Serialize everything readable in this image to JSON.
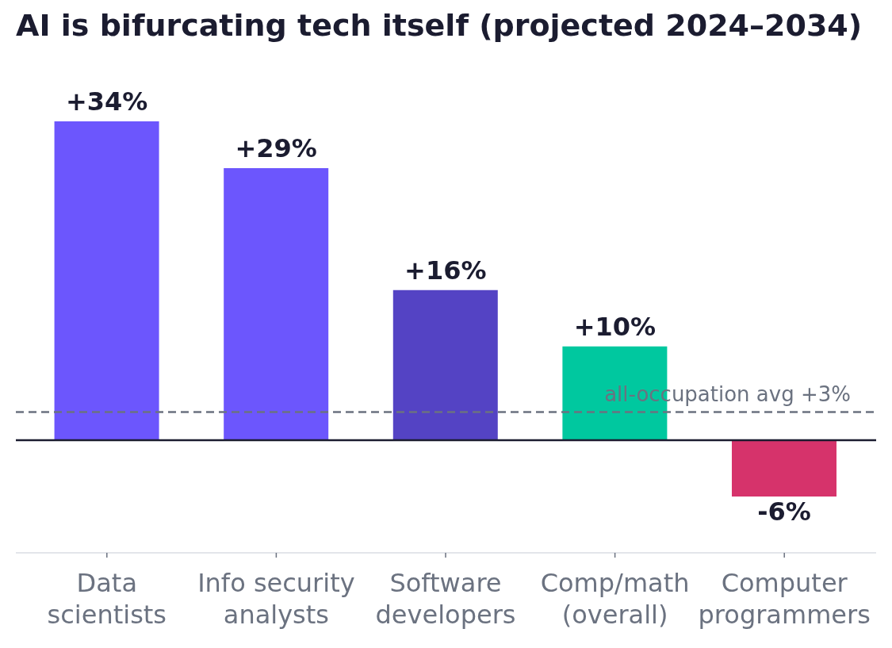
{
  "chart_data": {
    "type": "bar",
    "title": "AI is bifurcating tech itself (projected 2024–2034)",
    "categories": [
      "Data scientists",
      "Info security analysts",
      "Software developers",
      "Comp/math (overall)",
      "Computer programmers"
    ],
    "values": [
      34,
      29,
      16,
      10,
      -6
    ],
    "colors": [
      "#6c56fd",
      "#6c56fd",
      "#5443c4",
      "#00c89f",
      "#d6336b"
    ],
    "value_labels": [
      "+34%",
      "+29%",
      "+16%",
      "+10%",
      "-6%"
    ],
    "ref_lines": [
      {
        "axis": "y",
        "value": 0,
        "color": "#1b1c30",
        "line_style": "solid"
      },
      {
        "axis": "y",
        "value": 3,
        "label": "all-occupation avg +3%",
        "color": "#6b7280",
        "line_style": "dashed"
      }
    ]
  }
}
